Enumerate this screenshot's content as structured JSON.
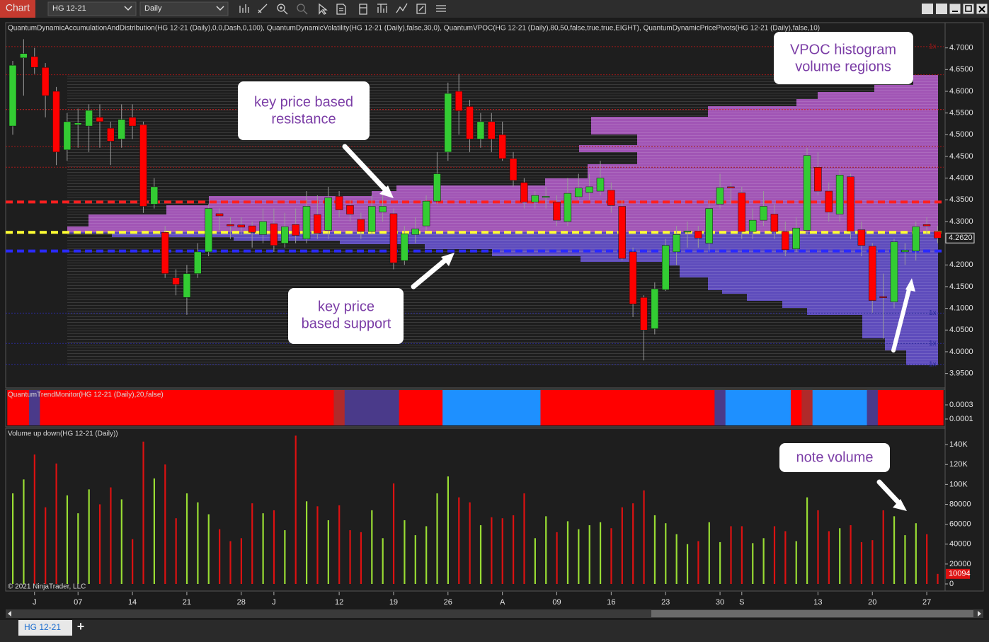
{
  "toolbar": {
    "title": "Chart",
    "instrument": "HG 12-21",
    "period": "Daily"
  },
  "tab": {
    "label": "HG 12-21",
    "add": "+"
  },
  "copyright": "© 2021 NinjaTrader, LLC",
  "annotations": [
    {
      "lines": [
        "key price based",
        "resistance"
      ]
    },
    {
      "lines": [
        "key price",
        "based support"
      ]
    },
    {
      "lines": [
        "VPOC histogram",
        "volume regions"
      ]
    },
    {
      "lines": [
        "note volume"
      ]
    }
  ],
  "chart_data": [
    {
      "type": "candlestick",
      "indicator_label": "QuantumDynamicAccumulationAndDistribution(HG 12-21 (Daily),0,0,Dash,0,100), QuantumDynamicVolatility(HG 12-21 (Daily),false,30,0), QuantumVPOC(HG 12-21 (Daily),80,50,false,true,true,EIGHT), QuantumDynamicPricePivots(HG 12-21 (Daily),false,10)",
      "categories": [
        null,
        null,
        "J",
        null,
        null,
        null,
        "07",
        null,
        null,
        null,
        null,
        "14",
        null,
        null,
        null,
        null,
        "21",
        null,
        null,
        null,
        null,
        "28",
        null,
        null,
        "J",
        null,
        null,
        null,
        null,
        null,
        "12",
        null,
        null,
        null,
        null,
        "19",
        null,
        null,
        null,
        null,
        "26",
        null,
        null,
        null,
        null,
        "A",
        null,
        null,
        null,
        null,
        "09",
        null,
        null,
        null,
        null,
        "16",
        null,
        null,
        null,
        null,
        "23",
        null,
        null,
        null,
        null,
        "30",
        null,
        "S",
        null,
        null,
        null,
        null,
        null,
        null,
        "13",
        null,
        null,
        null,
        null,
        "20",
        null,
        null,
        null,
        null,
        "27",
        null
      ],
      "open": [
        4.52,
        4.677,
        4.68,
        4.655,
        4.6,
        4.465,
        4.523,
        4.52,
        4.54,
        4.515,
        4.49,
        4.54,
        4.523,
        4.34,
        4.275,
        4.17,
        4.125,
        4.18,
        4.23,
        4.318,
        4.293,
        4.292,
        4.29,
        4.27,
        4.295,
        4.25,
        4.293,
        4.26,
        4.316,
        4.28,
        4.358,
        4.337,
        4.305,
        4.277,
        4.322,
        4.318,
        4.21,
        4.27,
        4.29,
        4.347,
        4.46,
        4.6,
        4.565,
        4.49,
        4.53,
        4.5,
        4.445,
        4.39,
        4.345,
        4.357,
        4.345,
        4.3,
        4.357,
        4.367,
        4.37,
        4.372,
        4.335,
        4.23,
        4.125,
        4.053,
        4.143,
        4.23,
        4.276,
        4.278,
        4.25,
        4.34,
        4.38,
        4.366,
        4.277,
        4.303,
        4.317,
        4.277,
        4.237,
        4.28,
        4.425,
        4.37,
        4.317,
        4.403,
        4.281,
        4.243,
        4.127,
        4.115,
        4.23,
        4.232,
        4.293,
        4.277
      ],
      "high": [
        4.67,
        4.72,
        4.7,
        4.665,
        4.61,
        4.55,
        4.56,
        4.57,
        4.57,
        4.53,
        4.57,
        4.57,
        4.53,
        4.4,
        4.29,
        4.19,
        4.2,
        4.25,
        4.34,
        4.33,
        4.31,
        4.31,
        4.3,
        4.33,
        4.33,
        4.32,
        4.33,
        4.37,
        4.36,
        4.38,
        4.37,
        4.35,
        4.32,
        4.36,
        4.36,
        4.33,
        4.29,
        4.31,
        4.36,
        4.46,
        4.62,
        4.64,
        4.58,
        4.55,
        4.55,
        4.53,
        4.46,
        4.4,
        4.37,
        4.38,
        4.36,
        4.4,
        4.41,
        4.41,
        4.44,
        4.39,
        4.35,
        4.24,
        4.13,
        4.16,
        4.26,
        4.29,
        4.3,
        4.29,
        4.35,
        4.41,
        4.39,
        4.38,
        4.33,
        4.37,
        4.34,
        4.3,
        4.31,
        4.47,
        4.46,
        4.39,
        4.42,
        4.41,
        4.3,
        4.25,
        4.18,
        4.26,
        4.25,
        4.3,
        4.31,
        4.29
      ],
      "low": [
        4.5,
        4.59,
        4.64,
        4.54,
        4.43,
        4.44,
        4.47,
        4.46,
        4.47,
        4.43,
        4.47,
        4.49,
        4.32,
        4.33,
        4.17,
        4.13,
        4.085,
        4.17,
        4.22,
        4.28,
        4.26,
        4.27,
        4.24,
        4.25,
        4.23,
        4.24,
        4.25,
        4.25,
        4.26,
        4.26,
        4.31,
        4.3,
        4.26,
        4.27,
        4.3,
        4.19,
        4.2,
        4.25,
        4.28,
        4.34,
        4.44,
        4.5,
        4.46,
        4.47,
        4.46,
        4.44,
        4.38,
        4.33,
        4.33,
        4.33,
        4.29,
        4.29,
        4.35,
        4.35,
        4.36,
        4.32,
        4.21,
        4.08,
        3.98,
        4.04,
        4.14,
        4.2,
        4.24,
        4.24,
        4.23,
        4.33,
        4.34,
        4.26,
        4.26,
        4.29,
        4.26,
        4.22,
        4.23,
        4.27,
        4.36,
        4.3,
        4.3,
        4.26,
        4.22,
        4.09,
        4.03,
        4.1,
        4.2,
        4.21,
        4.27,
        4.25
      ],
      "close": [
        4.66,
        4.687,
        4.655,
        4.59,
        4.46,
        4.53,
        4.527,
        4.556,
        4.53,
        4.485,
        4.535,
        4.52,
        4.335,
        4.38,
        4.18,
        4.155,
        4.18,
        4.23,
        4.33,
        4.313,
        4.29,
        4.287,
        4.275,
        4.3,
        4.245,
        4.288,
        4.268,
        4.335,
        4.273,
        4.355,
        4.327,
        4.317,
        4.277,
        4.335,
        4.335,
        4.205,
        4.272,
        4.283,
        4.347,
        4.41,
        4.595,
        4.555,
        4.49,
        4.53,
        4.49,
        4.445,
        4.395,
        4.345,
        4.36,
        4.358,
        4.303,
        4.365,
        4.377,
        4.38,
        4.4,
        4.337,
        4.215,
        4.11,
        4.05,
        4.145,
        4.245,
        4.27,
        4.278,
        4.262,
        4.33,
        4.378,
        4.378,
        4.277,
        4.303,
        4.335,
        4.277,
        4.235,
        4.285,
        4.452,
        4.37,
        4.322,
        4.407,
        4.278,
        4.245,
        4.118,
        4.126,
        4.253,
        4.234,
        4.288,
        4.29,
        4.262
      ],
      "up_color": "#33cc33",
      "down_color": "#ff0000",
      "ylim": [
        3.92,
        4.75
      ],
      "yticks": [
        {
          "value": 4.7,
          "label": "4.7000"
        },
        {
          "value": 4.65,
          "label": "4.6500"
        },
        {
          "value": 4.6,
          "label": "4.6000"
        },
        {
          "value": 4.55,
          "label": "4.5500"
        },
        {
          "value": 4.5,
          "label": "4.5000"
        },
        {
          "value": 4.45,
          "label": "4.4500"
        },
        {
          "value": 4.4,
          "label": "4.4000"
        },
        {
          "value": 4.35,
          "label": "4.3500"
        },
        {
          "value": 4.3,
          "label": "4.3000"
        },
        {
          "value": 4.2,
          "label": "4.2000"
        },
        {
          "value": 4.15,
          "label": "4.1500"
        },
        {
          "value": 4.1,
          "label": "4.1000"
        },
        {
          "value": 4.05,
          "label": "4.0500"
        },
        {
          "value": 4,
          "label": "4.0000"
        },
        {
          "value": 3.95,
          "label": "3.9500"
        }
      ],
      "levels": [
        {
          "value": 4.703,
          "color": "#a01818",
          "style": "dotted",
          "label": "1x"
        },
        {
          "value": 4.638,
          "color": "#a01818",
          "style": "dotted"
        },
        {
          "value": 4.558,
          "color": "#d02020",
          "style": "dotted"
        },
        {
          "value": 4.473,
          "color": "#a01818",
          "style": "dotted"
        },
        {
          "value": 4.425,
          "color": "#a01818",
          "style": "dotted"
        },
        {
          "value": 4.345,
          "color": "#ff2020",
          "style": "dashed"
        },
        {
          "value": 4.275,
          "color": "#ffff33",
          "style": "dashed"
        },
        {
          "value": 4.232,
          "color": "#2a2aff",
          "style": "dashed"
        },
        {
          "value": 4.089,
          "color": "#2a2a9a",
          "style": "dotted",
          "label": "1x"
        },
        {
          "value": 4.019,
          "color": "#2a2a9a",
          "style": "dotted",
          "label": "1x"
        },
        {
          "value": 3.971,
          "color": "#2a2a9a",
          "style": "dotted",
          "label": "1x"
        }
      ],
      "last_price": {
        "value": 4.262,
        "label": "4.2620"
      }
    },
    {
      "type": "heatstrip",
      "label": "QuantumTrendMonitor(HG 12-21 (Daily),20,false)",
      "colors": [
        "#ff0000",
        "#ff0000",
        "#4a3a8a",
        "#ff0000",
        "#ff0000",
        "#ff0000",
        "#ff0000",
        "#ff0000",
        "#ff0000",
        "#ff0000",
        "#ff0000",
        "#ff0000",
        "#ff0000",
        "#ff0000",
        "#ff0000",
        "#ff0000",
        "#ff0000",
        "#ff0000",
        "#ff0000",
        "#ff0000",
        "#ff0000",
        "#ff0000",
        "#ff0000",
        "#ff0000",
        "#ff0000",
        "#ff0000",
        "#ff0000",
        "#ff0000",
        "#ff0000",
        "#ff0000",
        "#b02a2a",
        "#4a3a8a",
        "#4a3a8a",
        "#4a3a8a",
        "#4a3a8a",
        "#4a3a8a",
        "#ff0000",
        "#ff0000",
        "#ff0000",
        "#ff0000",
        "#1e90ff",
        "#1e90ff",
        "#1e90ff",
        "#1e90ff",
        "#1e90ff",
        "#1e90ff",
        "#1e90ff",
        "#1e90ff",
        "#1e90ff",
        "#ff0000",
        "#ff0000",
        "#ff0000",
        "#ff0000",
        "#ff0000",
        "#ff0000",
        "#ff0000",
        "#ff0000",
        "#ff0000",
        "#ff0000",
        "#ff0000",
        "#ff0000",
        "#ff0000",
        "#ff0000",
        "#ff0000",
        "#ff0000",
        "#4a3a8a",
        "#1e90ff",
        "#1e90ff",
        "#1e90ff",
        "#1e90ff",
        "#1e90ff",
        "#1e90ff",
        "#ff0000",
        "#b02a2a",
        "#1e90ff",
        "#1e90ff",
        "#1e90ff",
        "#1e90ff",
        "#1e90ff",
        "#4a3a8a",
        "#ff0000",
        "#ff0000",
        "#ff0000",
        "#ff0000",
        "#ff0000",
        "#ff0000"
      ],
      "ylim": [
        0,
        0.0005
      ],
      "yticks": [
        0.0003,
        0.0001
      ]
    },
    {
      "type": "bar",
      "label": "Volume up down(HG 12-21 (Daily))",
      "values": [
        91000,
        105000,
        130000,
        77000,
        121000,
        89000,
        71000,
        95000,
        80000,
        97000,
        85000,
        45000,
        143000,
        106000,
        120000,
        66000,
        91000,
        82000,
        70000,
        55000,
        43000,
        46000,
        81000,
        71000,
        74000,
        54000,
        149000,
        83000,
        78000,
        64000,
        79000,
        54000,
        52000,
        74000,
        46000,
        101000,
        64000,
        49000,
        58000,
        91000,
        108000,
        87000,
        82000,
        59000,
        67000,
        66000,
        69000,
        91000,
        46000,
        68000,
        52000,
        63000,
        55000,
        59000,
        62000,
        56000,
        77000,
        81000,
        94000,
        69000,
        61000,
        50000,
        40000,
        43000,
        62000,
        42000,
        58000,
        58000,
        41000,
        46000,
        58000,
        53000,
        43000,
        87000,
        74000,
        53000,
        56000,
        59000,
        42000,
        44000,
        74000,
        68000,
        49000,
        61000,
        50000,
        10094
      ],
      "up_color": "#99dd33",
      "down_color": "#dd1111",
      "ylim": [
        0,
        155000
      ],
      "yticks": [
        {
          "value": 140000,
          "label": "140K"
        },
        {
          "value": 120000,
          "label": "120K"
        },
        {
          "value": 100000,
          "label": "100K"
        },
        80000,
        60000,
        40000,
        20000,
        0
      ]
    }
  ]
}
